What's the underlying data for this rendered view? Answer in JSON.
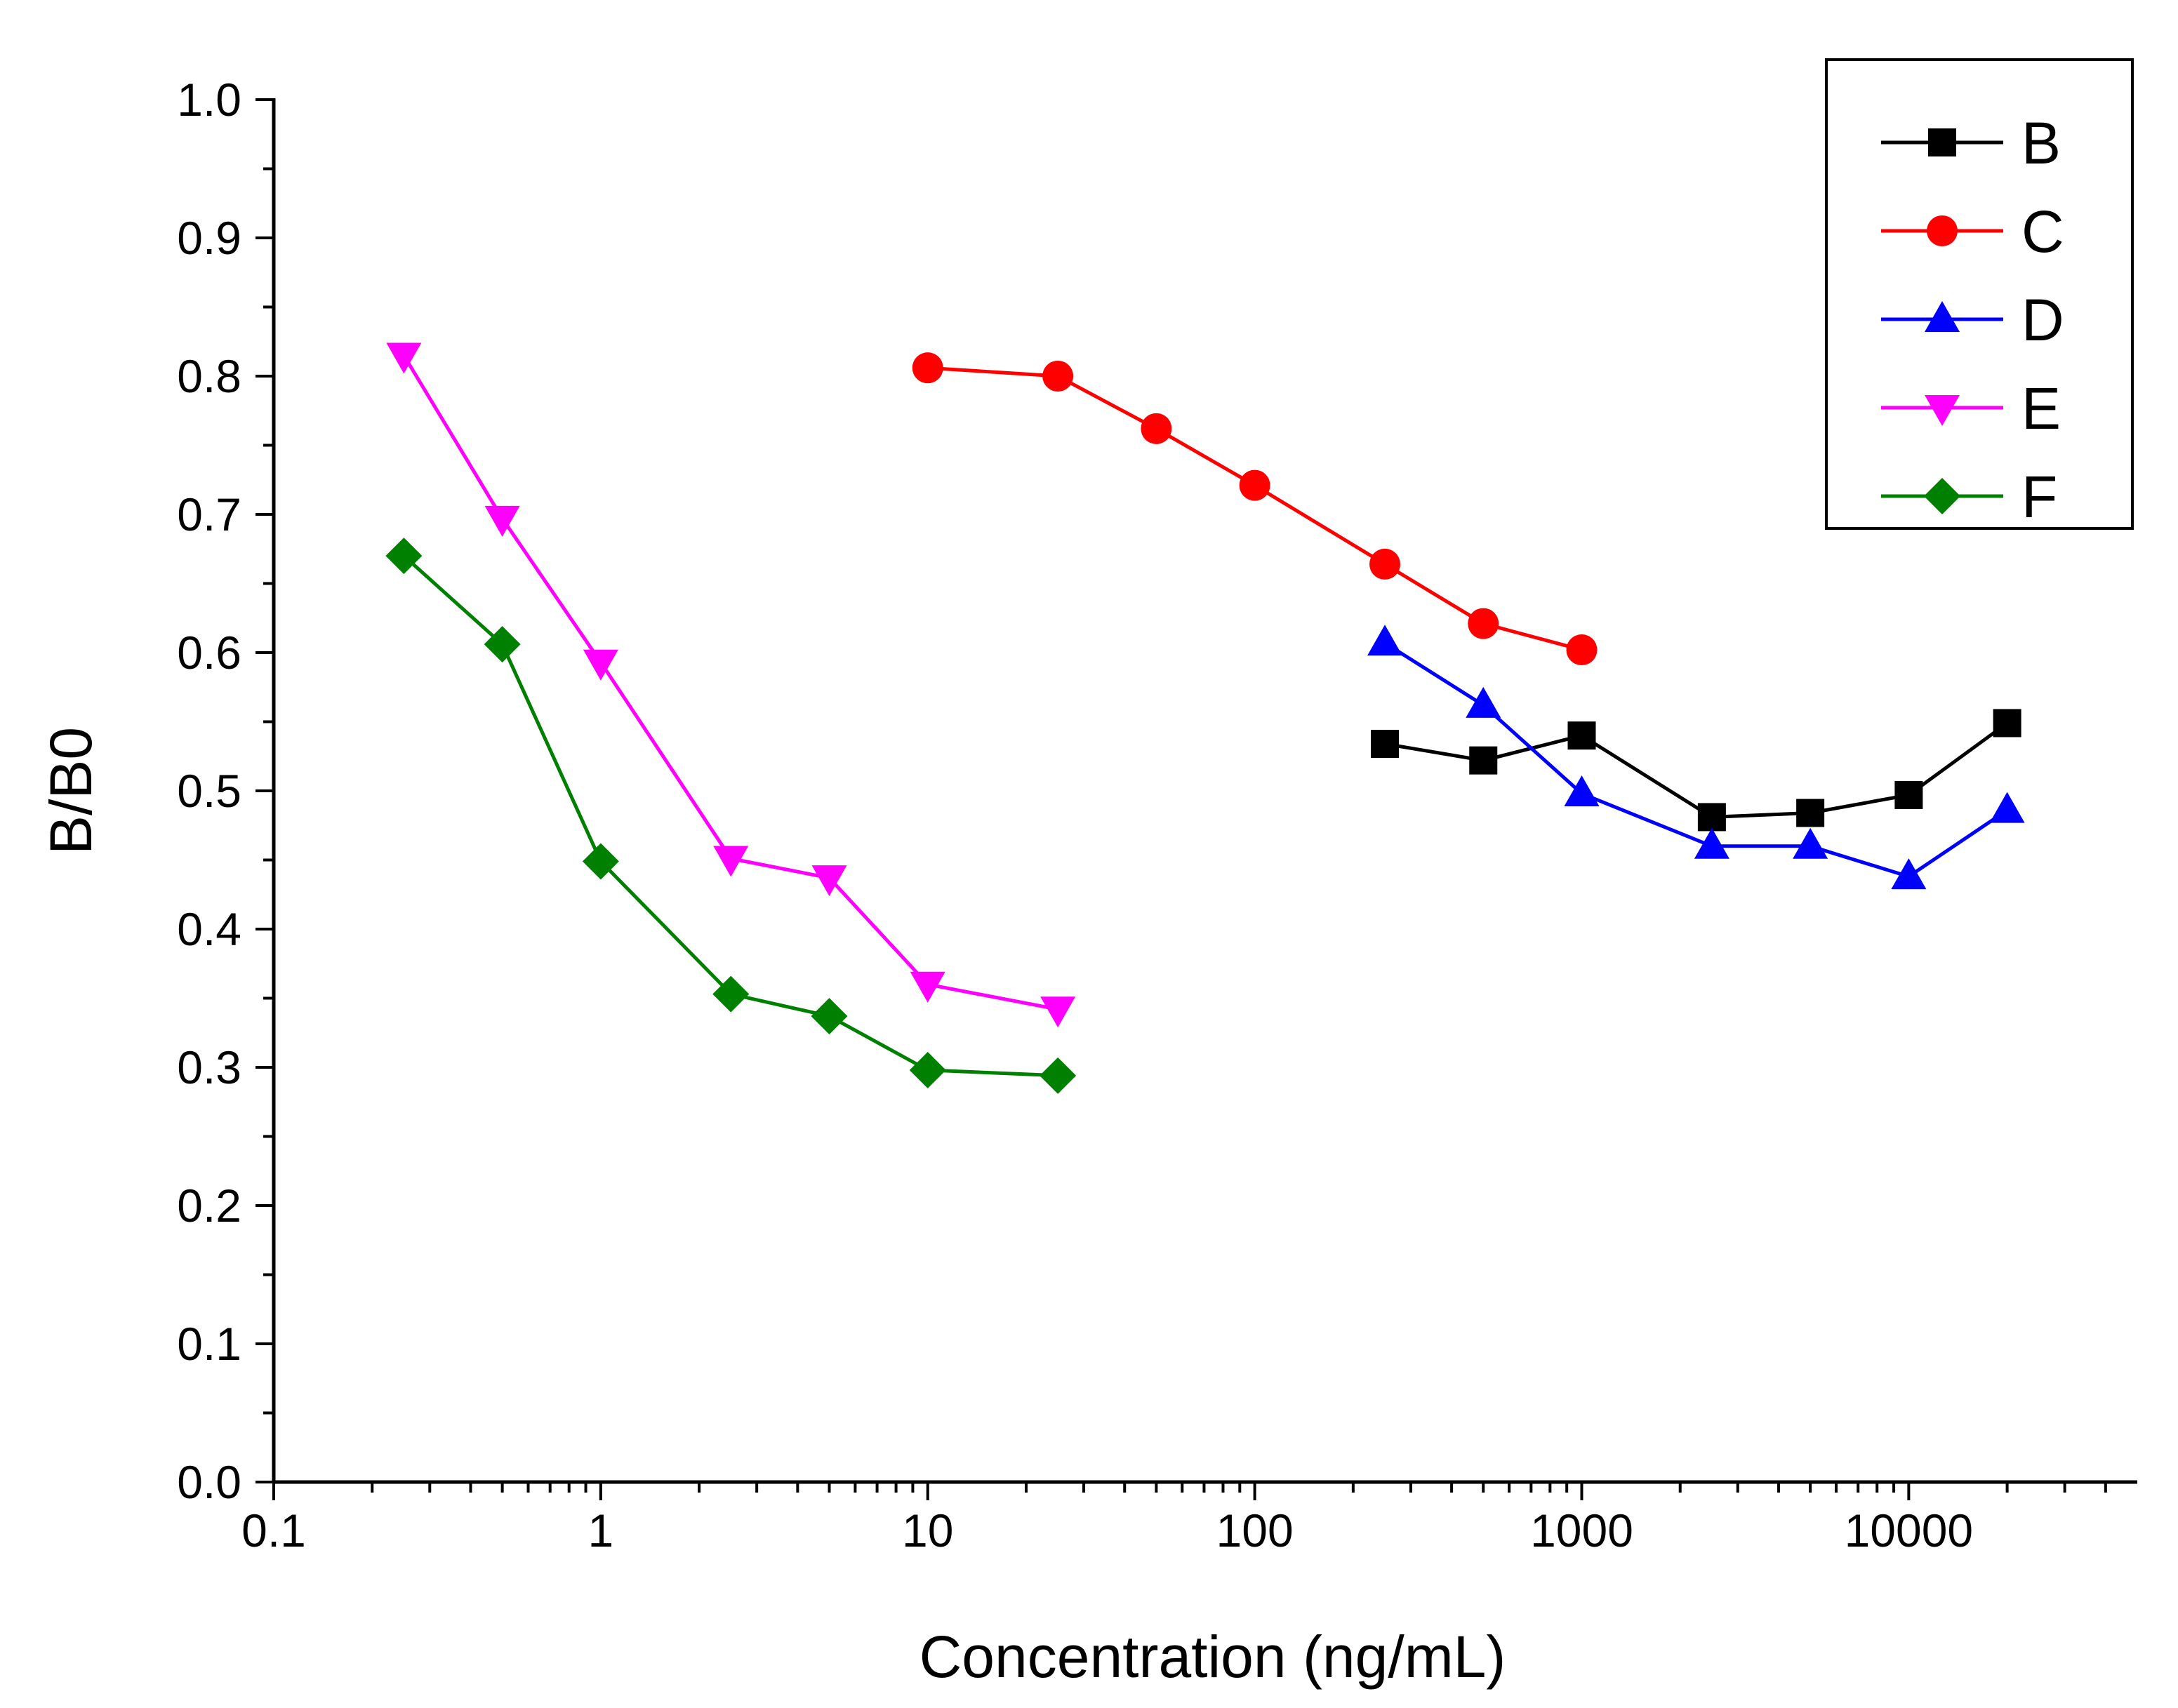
{
  "chart_data": {
    "type": "line",
    "title": "",
    "xlabel": "Concentration (ng/mL)",
    "ylabel": "B/B0",
    "xscale": "log",
    "xlim": [
      0.1,
      50000
    ],
    "ylim": [
      0.0,
      1.0
    ],
    "x_ticks": [
      0.1,
      1,
      10,
      100,
      1000,
      10000
    ],
    "x_tick_labels": [
      "0.1",
      "1",
      "10",
      "100",
      "1000",
      "10000"
    ],
    "y_ticks": [
      0.0,
      0.1,
      0.2,
      0.3,
      0.4,
      0.5,
      0.6,
      0.7,
      0.8,
      0.9,
      1.0
    ],
    "y_tick_labels": [
      "0.0",
      "0.1",
      "0.2",
      "0.3",
      "0.4",
      "0.5",
      "0.6",
      "0.7",
      "0.8",
      "0.9",
      "1.0"
    ],
    "grid": false,
    "legend_position": "top-right",
    "series": [
      {
        "name": "B",
        "color": "#000000",
        "marker": "square",
        "x": [
          250,
          500,
          1000,
          2500,
          5000,
          10000,
          20000
        ],
        "y": [
          0.534,
          0.522,
          0.54,
          0.481,
          0.484,
          0.497,
          0.549
        ]
      },
      {
        "name": "C",
        "color": "#ff0000",
        "marker": "circle",
        "x": [
          10,
          25,
          50,
          100,
          250,
          500,
          1000
        ],
        "y": [
          0.806,
          0.8,
          0.762,
          0.721,
          0.664,
          0.621,
          0.602
        ]
      },
      {
        "name": "D",
        "color": "#0000ff",
        "marker": "triangle-up",
        "x": [
          250,
          500,
          1000,
          2500,
          5000,
          10000,
          20000
        ],
        "y": [
          0.607,
          0.562,
          0.498,
          0.46,
          0.46,
          0.438,
          0.486
        ]
      },
      {
        "name": "E",
        "color": "#ff00ff",
        "marker": "triangle-down",
        "x": [
          0.25,
          0.5,
          1,
          2.5,
          5,
          10,
          25
        ],
        "y": [
          0.815,
          0.697,
          0.593,
          0.451,
          0.437,
          0.36,
          0.342
        ]
      },
      {
        "name": "F",
        "color": "#008000",
        "marker": "diamond",
        "x": [
          0.25,
          0.5,
          1,
          2.5,
          5,
          10,
          25
        ],
        "y": [
          0.67,
          0.606,
          0.449,
          0.353,
          0.337,
          0.298,
          0.294
        ]
      }
    ]
  }
}
